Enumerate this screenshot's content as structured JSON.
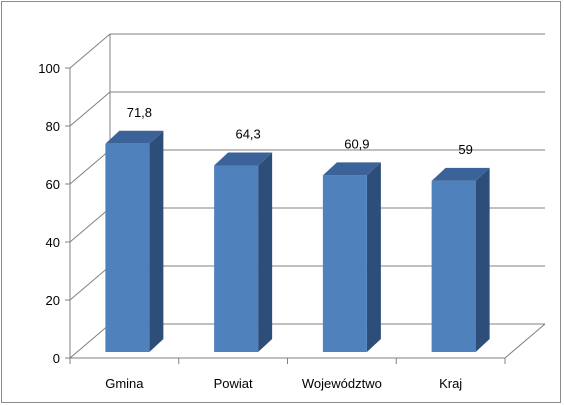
{
  "chart_data": {
    "type": "bar",
    "title": "",
    "xlabel": "",
    "ylabel": "",
    "categories": [
      "Gmina",
      "Powiat",
      "Województwo",
      "Kraj"
    ],
    "values": [
      71.8,
      64.3,
      60.9,
      59
    ],
    "data_labels": [
      "71,8",
      "64,3",
      "60,9",
      "59"
    ],
    "ylim": [
      0,
      100
    ],
    "yticks": [
      "0",
      "20",
      "40",
      "60",
      "80",
      "100"
    ],
    "grid": true,
    "legend": "none",
    "style": "3d-column",
    "colors": {
      "bar_front": "#4F81BD",
      "bar_side": "#2E4E7A",
      "bar_top": "#3B6399",
      "grid": "#808080"
    }
  }
}
